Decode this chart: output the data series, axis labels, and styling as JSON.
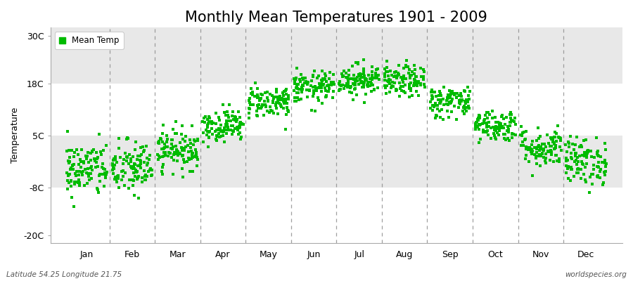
{
  "title": "Monthly Mean Temperatures 1901 - 2009",
  "ylabel": "Temperature",
  "bottom_left": "Latitude 54.25 Longitude 21.75",
  "bottom_right": "worldspecies.org",
  "legend_label": "Mean Temp",
  "dot_color": "#00bb00",
  "figure_bg_color": "#ffffff",
  "plot_bg_color": "#f0f0f0",
  "band_colors": [
    "#ffffff",
    "#e8e8e8"
  ],
  "yticks": [
    -20,
    -8,
    5,
    18,
    30
  ],
  "ytick_labels": [
    "-20C",
    "-8C",
    "5C",
    "18C",
    "30C"
  ],
  "ylim": [
    -22,
    32
  ],
  "months": [
    "Jan",
    "Feb",
    "Mar",
    "Apr",
    "May",
    "Jun",
    "Jul",
    "Aug",
    "Sep",
    "Oct",
    "Nov",
    "Dec"
  ],
  "monthly_means": [
    -3.5,
    -3.2,
    1.5,
    7.5,
    13.5,
    17.0,
    19.0,
    18.5,
    13.5,
    7.5,
    2.0,
    -1.5
  ],
  "monthly_stds": [
    3.5,
    3.5,
    2.5,
    2.0,
    2.0,
    2.0,
    2.0,
    2.0,
    2.0,
    2.0,
    2.5,
    3.0
  ],
  "n_years": 109,
  "seed": 42,
  "dot_size": 6,
  "title_fontsize": 15,
  "axis_fontsize": 9,
  "tick_fontsize": 9,
  "dashed_line_color": "#888888",
  "spine_color": "#aaaaaa"
}
